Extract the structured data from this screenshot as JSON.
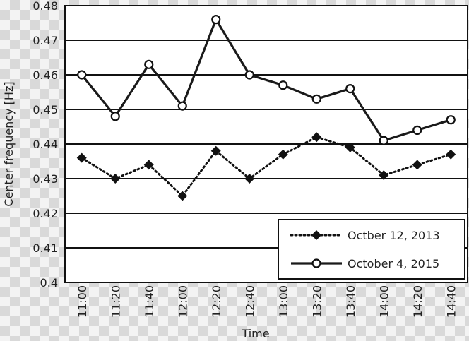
{
  "chart_data": {
    "type": "line",
    "title": "",
    "xlabel": "Time",
    "ylabel": "Center frequency [Hz]",
    "categories": [
      "11:00",
      "11:20",
      "11:40",
      "12:00",
      "12:20",
      "12:40",
      "13:00",
      "13:20",
      "13:40",
      "14:00",
      "14:20",
      "14:40"
    ],
    "ylim": [
      0.4,
      0.48
    ],
    "yticks": [
      "0.4",
      "0.41",
      "0.42",
      "0.43",
      "0.44",
      "0.45",
      "0.46",
      "0.47",
      "0.48"
    ],
    "grid": "horizontal",
    "legend_position": "bottom-right",
    "series": [
      {
        "name": "Octber 12, 2013",
        "style": "dotted",
        "marker": "diamond",
        "color": "#111111",
        "values": [
          0.436,
          0.43,
          0.434,
          0.425,
          0.438,
          0.43,
          0.437,
          0.442,
          0.439,
          0.431,
          0.434,
          0.437
        ]
      },
      {
        "name": "October 4, 2015",
        "style": "solid",
        "marker": "circle-open",
        "color": "#1a1a1a",
        "values": [
          0.46,
          0.448,
          0.463,
          0.451,
          0.476,
          0.46,
          0.457,
          0.453,
          0.456,
          0.441,
          0.444,
          0.447
        ]
      }
    ]
  }
}
